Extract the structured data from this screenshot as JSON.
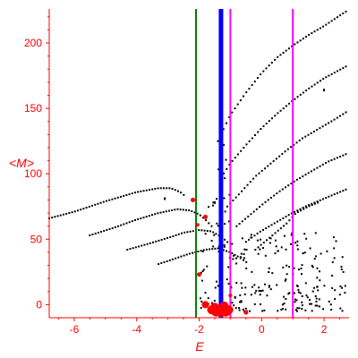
{
  "chart_data": {
    "type": "scatter",
    "title": "",
    "xlabel": "E",
    "ylabel": "<M>",
    "xlim": [
      -6.8,
      2.8
    ],
    "ylim": [
      -10,
      226
    ],
    "x_ticks": [
      -6,
      -4,
      -2,
      0,
      2
    ],
    "x_tick_labels": [
      "-6",
      "-4",
      "-2",
      "0",
      "2"
    ],
    "y_ticks": [
      0,
      50,
      100,
      150,
      200
    ],
    "y_tick_labels": [
      "0",
      "50",
      "100",
      "150",
      "200"
    ],
    "axis_color": "#ff0000",
    "grid": false,
    "vertical_lines": [
      {
        "x": -2.1,
        "color": "#008000",
        "width": "thin"
      },
      {
        "x": -1.3,
        "color": "#0000ff",
        "width": "thick"
      },
      {
        "x": -1.0,
        "color": "#ff00ff",
        "width": "thin"
      },
      {
        "x": 1.0,
        "color": "#ff00ff",
        "width": "thin"
      }
    ],
    "curves": [
      {
        "color": "#000000",
        "x_range": [
          -6.8,
          -2.4
        ],
        "points": [
          [
            -6.8,
            66
          ],
          [
            -6.0,
            71
          ],
          [
            -5.0,
            79
          ],
          [
            -4.0,
            86
          ],
          [
            -3.3,
            89
          ],
          [
            -2.9,
            89
          ],
          [
            -2.6,
            86
          ],
          [
            -2.4,
            82
          ]
        ]
      },
      {
        "color": "#000000",
        "x_range": [
          -5.5,
          -1.6
        ],
        "points": [
          [
            -5.5,
            53
          ],
          [
            -4.7,
            59
          ],
          [
            -4.0,
            65
          ],
          [
            -3.3,
            70
          ],
          [
            -2.7,
            73
          ],
          [
            -2.3,
            72
          ],
          [
            -2.0,
            69
          ],
          [
            -1.8,
            65
          ],
          [
            -1.6,
            60
          ]
        ]
      },
      {
        "color": "#000000",
        "x_range": [
          -4.3,
          -1.0
        ],
        "points": [
          [
            -4.3,
            42
          ],
          [
            -3.7,
            46
          ],
          [
            -3.0,
            51
          ],
          [
            -2.5,
            55
          ],
          [
            -2.0,
            57
          ],
          [
            -1.6,
            56
          ],
          [
            -1.3,
            52
          ],
          [
            -1.0,
            46
          ]
        ]
      },
      {
        "color": "#000000",
        "x_range": [
          -3.3,
          -0.4
        ],
        "points": [
          [
            -3.3,
            31
          ],
          [
            -2.8,
            35
          ],
          [
            -2.3,
            39
          ],
          [
            -1.8,
            42
          ],
          [
            -1.4,
            43
          ],
          [
            -1.0,
            40
          ],
          [
            -0.7,
            36
          ],
          [
            -0.4,
            31
          ]
        ]
      },
      {
        "color": "#000000",
        "x_range": [
          -1.4,
          2.7
        ],
        "points": [
          [
            -1.4,
            125
          ],
          [
            -1.0,
            145
          ],
          [
            -0.5,
            162
          ],
          [
            0.0,
            177
          ],
          [
            0.5,
            189
          ],
          [
            1.0,
            198
          ],
          [
            1.5,
            206
          ],
          [
            2.0,
            213
          ],
          [
            2.7,
            224
          ]
        ]
      },
      {
        "color": "#000000",
        "x_range": [
          -1.3,
          2.7
        ],
        "points": [
          [
            -1.3,
            97
          ],
          [
            -1.0,
            108
          ],
          [
            -0.5,
            122
          ],
          [
            0.0,
            135
          ],
          [
            0.5,
            146
          ],
          [
            1.0,
            156
          ],
          [
            1.5,
            165
          ],
          [
            2.0,
            173
          ],
          [
            2.7,
            182
          ]
        ]
      },
      {
        "color": "#000000",
        "x_range": [
          -1.1,
          2.7
        ],
        "points": [
          [
            -1.1,
            75
          ],
          [
            -0.7,
            85
          ],
          [
            -0.2,
            98
          ],
          [
            0.3,
            108
          ],
          [
            0.8,
            118
          ],
          [
            1.3,
            127
          ],
          [
            1.8,
            134
          ],
          [
            2.3,
            141
          ],
          [
            2.7,
            147
          ]
        ]
      },
      {
        "color": "#000000",
        "x_range": [
          -0.8,
          2.7
        ],
        "points": [
          [
            -0.8,
            60
          ],
          [
            -0.4,
            68
          ],
          [
            0.1,
            78
          ],
          [
            0.6,
            87
          ],
          [
            1.1,
            95
          ],
          [
            1.6,
            102
          ],
          [
            2.1,
            109
          ],
          [
            2.7,
            115
          ]
        ]
      },
      {
        "color": "#000000",
        "x_range": [
          -0.5,
          2.7
        ],
        "points": [
          [
            -0.5,
            48
          ],
          [
            -0.1,
            55
          ],
          [
            0.4,
            62
          ],
          [
            0.9,
            69
          ],
          [
            1.4,
            75
          ],
          [
            1.9,
            80
          ],
          [
            2.3,
            84
          ],
          [
            2.7,
            88
          ]
        ]
      },
      {
        "color": "#000000",
        "x_range": [
          -0.2,
          1.8
        ],
        "points": [
          [
            -0.2,
            42
          ],
          [
            0.3,
            52
          ],
          [
            0.8,
            62
          ],
          [
            1.1,
            70
          ],
          [
            1.5,
            75
          ],
          [
            1.8,
            78
          ]
        ]
      }
    ],
    "scatter_clusters": [
      {
        "color": "#000000",
        "x_range": [
          -2.0,
          2.7
        ],
        "y_range": [
          -5,
          55
        ],
        "count": 230
      },
      {
        "color": "#000000",
        "x_range": [
          -1.7,
          -1.0
        ],
        "y_range": [
          60,
          130
        ],
        "count": 18
      }
    ],
    "isolated_points": [
      {
        "x": -3.1,
        "y": 81,
        "color": "#000000"
      },
      {
        "x": 2.0,
        "y": 164,
        "color": "#000000"
      },
      {
        "x": -1.5,
        "y": 78,
        "color": "#000000"
      }
    ],
    "red_points": [
      {
        "x": -2.2,
        "y": 80,
        "size": 2.5
      },
      {
        "x": -1.8,
        "y": 67,
        "size": 2.5
      },
      {
        "x": -2.05,
        "y": 61,
        "size": 2
      },
      {
        "x": -2.0,
        "y": 23,
        "size": 2.5
      },
      {
        "x": -1.8,
        "y": 0,
        "size": 4
      },
      {
        "x": -1.6,
        "y": -4,
        "size": 5
      },
      {
        "x": -1.45,
        "y": -5,
        "size": 6
      },
      {
        "x": -1.3,
        "y": -5,
        "size": 6
      },
      {
        "x": -1.15,
        "y": -5,
        "size": 6
      },
      {
        "x": -1.05,
        "y": -4,
        "size": 5
      },
      {
        "x": -1.5,
        "y": -2,
        "size": 5
      },
      {
        "x": -1.2,
        "y": -1,
        "size": 5
      },
      {
        "x": -0.5,
        "y": -6,
        "size": 2.5
      },
      {
        "x": -1.0,
        "y": 7,
        "size": 2
      }
    ]
  }
}
